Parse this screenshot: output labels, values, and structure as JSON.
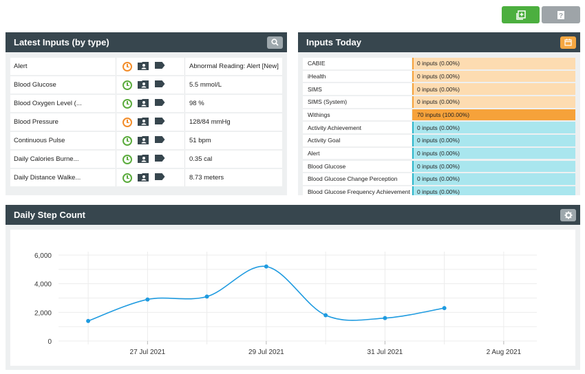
{
  "latest": {
    "title": "Latest Inputs (by type)",
    "rows": [
      {
        "type": "Alert",
        "status": "orange",
        "value": "Abnormal Reading: Alert [New]"
      },
      {
        "type": "Blood Glucose",
        "status": "green",
        "value": "5.5 mmol/L"
      },
      {
        "type": "Blood Oxygen Level (...",
        "status": "green",
        "value": "98 %"
      },
      {
        "type": "Blood Pressure",
        "status": "orange",
        "value": "128/84 mmHg"
      },
      {
        "type": "Continuous Pulse",
        "status": "green",
        "value": "51 bpm"
      },
      {
        "type": "Daily Calories Burne...",
        "status": "green",
        "value": "0.35 cal"
      },
      {
        "type": "Daily Distance Walke...",
        "status": "green",
        "value": "8.73 meters"
      }
    ]
  },
  "today": {
    "title": "Inputs Today",
    "rows": [
      {
        "name": "CABIE",
        "value": "0 inputs (0.00%)",
        "style": "peach"
      },
      {
        "name": "iHealth",
        "value": "0 inputs (0.00%)",
        "style": "peach"
      },
      {
        "name": "SIMS",
        "value": "0 inputs (0.00%)",
        "style": "peach"
      },
      {
        "name": "SIMS (System)",
        "value": "0 inputs (0.00%)",
        "style": "peach"
      },
      {
        "name": "Withings",
        "value": "70 inputs (100.00%)",
        "style": "full"
      },
      {
        "name": "Activity Achievement",
        "value": "0 inputs (0.00%)",
        "style": "cyan"
      },
      {
        "name": "Activity Goal",
        "value": "0 inputs (0.00%)",
        "style": "cyan"
      },
      {
        "name": "Alert",
        "value": "0 inputs (0.00%)",
        "style": "cyan"
      },
      {
        "name": "Blood Glucose",
        "value": "0 inputs (0.00%)",
        "style": "cyan"
      },
      {
        "name": "Blood Glucose Change Perception",
        "value": "0 inputs (0.00%)",
        "style": "cyan"
      },
      {
        "name": "Blood Glucose Frequency Achievement",
        "value": "0 inputs (0.00%)",
        "style": "cyan"
      }
    ]
  },
  "step_panel": {
    "title": "Daily Step Count"
  },
  "colors": {
    "header": "#37464e",
    "line": "#1f9be0",
    "green_button": "#4caf3f"
  },
  "chart_data": {
    "type": "line",
    "title": "",
    "xlabel": "",
    "ylabel": "",
    "ylim": [
      0,
      6000
    ],
    "yticks": [
      0,
      2000,
      4000,
      6000
    ],
    "ytick_labels": [
      "0",
      "2,000",
      "4,000",
      "6,000"
    ],
    "xticks": [
      "2021-07-27",
      "2021-07-29",
      "2021-07-31",
      "2021-08-02"
    ],
    "xtick_labels": [
      "27 Jul 2021",
      "29 Jul 2021",
      "31 Jul 2021",
      "2 Aug 2021"
    ],
    "x_range": [
      "2021-07-25T12:00",
      "2021-08-02T12:00"
    ],
    "series": [
      {
        "x": [
          "2021-07-26",
          "2021-07-27",
          "2021-07-28",
          "2021-07-29",
          "2021-07-30",
          "2021-07-31",
          "2021-08-01"
        ],
        "y": [
          1400,
          2900,
          3100,
          5200,
          1800,
          1600,
          2300
        ]
      }
    ],
    "grid": true,
    "curve": "smooth"
  }
}
